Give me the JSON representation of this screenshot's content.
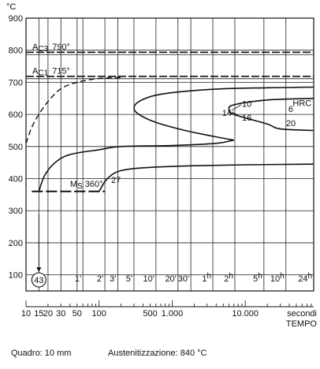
{
  "chart_data": {
    "type": "line",
    "title": "",
    "ylabel": "°C",
    "xlabel": "TEMPO",
    "y_ticks": [
      100,
      200,
      300,
      400,
      500,
      600,
      700,
      800,
      900
    ],
    "ylim": [
      50,
      900
    ],
    "x_time_ticks": [
      "1'",
      "2'",
      "3'",
      "5'",
      "10'",
      "20'",
      "30'",
      "1h",
      "2h",
      "5h",
      "10h",
      "24h"
    ],
    "x_seconds_ticks": [
      "10",
      "15",
      "20",
      "30",
      "50",
      "100",
      "500",
      "1.000",
      "10.000"
    ],
    "x_seconds_unit": "secondi",
    "x_scale": "log",
    "xlim_seconds": [
      10,
      86400
    ],
    "grid": true,
    "reference_lines": [
      {
        "label_main": "A",
        "label_sub": "C3",
        "label_val": "790°",
        "y": 790
      },
      {
        "label_main": "A",
        "label_sub": "C1",
        "label_val": "715°",
        "y": 715
      }
    ],
    "ms_line": {
      "label_main": "M",
      "label_sub": "S",
      "label_val": "360°",
      "y": 360,
      "x_start": 12,
      "x_end": 120
    },
    "curves": {
      "ferrite_start": [
        [
          10,
          510
        ],
        [
          12,
          560
        ],
        [
          15,
          600
        ],
        [
          20,
          640
        ],
        [
          30,
          680
        ],
        [
          50,
          700
        ],
        [
          100,
          712
        ],
        [
          200,
          715
        ]
      ],
      "bainite_start": [
        [
          15,
          360
        ],
        [
          18,
          410
        ],
        [
          25,
          450
        ],
        [
          40,
          475
        ],
        [
          100,
          490
        ],
        [
          200,
          500
        ],
        [
          1000,
          503
        ],
        [
          4000,
          510
        ],
        [
          7000,
          520
        ]
      ],
      "nose_curve": [
        [
          7000,
          520
        ],
        [
          4000,
          530
        ],
        [
          1500,
          550
        ],
        [
          600,
          575
        ],
        [
          350,
          600
        ],
        [
          300,
          620
        ],
        [
          350,
          640
        ],
        [
          600,
          660
        ],
        [
          1500,
          672
        ],
        [
          5000,
          680
        ],
        [
          20000,
          683
        ],
        [
          86400,
          685
        ]
      ],
      "bainite_end": [
        [
          100,
          360
        ],
        [
          130,
          400
        ],
        [
          200,
          425
        ],
        [
          500,
          435
        ],
        [
          2000,
          440
        ],
        [
          10000,
          443
        ],
        [
          86400,
          445
        ]
      ],
      "pearlite_region": [
        [
          86400,
          550
        ],
        [
          30000,
          555
        ],
        [
          20000,
          570
        ],
        [
          7000,
          600
        ],
        [
          6000,
          615
        ],
        [
          7000,
          630
        ],
        [
          20000,
          645
        ],
        [
          86400,
          650
        ]
      ]
    },
    "annotations": {
      "hardness": [
        {
          "text": "27",
          "x": 170,
          "y": 397
        },
        {
          "text": "14",
          "x": 5600,
          "y": 605
        },
        {
          "text": "10",
          "x": 10500,
          "y": 633
        },
        {
          "text": "16",
          "x": 10500,
          "y": 590
        },
        {
          "text": "6",
          "x": 42000,
          "y": 617
        },
        {
          "text": "20",
          "x": 42000,
          "y": 573
        }
      ],
      "hrc_label": "HRC",
      "circled_hardness": "43"
    }
  },
  "footer": {
    "quadro": "Quadro: 10 mm",
    "austenitizzazione": "Austenitizzazione: 840 °C"
  }
}
